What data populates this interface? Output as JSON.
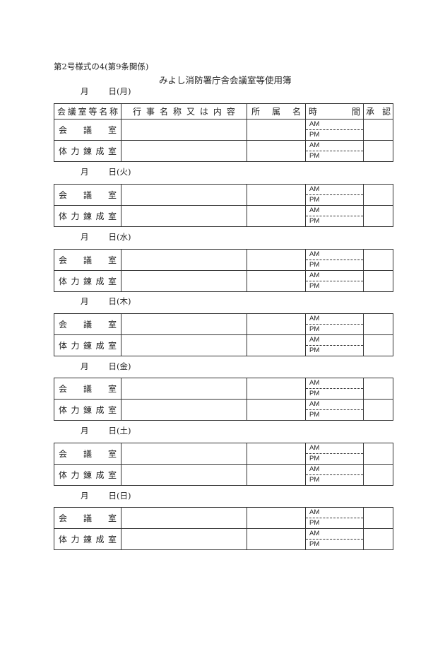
{
  "form_number": "第2号様式の4(第9条関係)",
  "title": "みよし消防署庁舎会議室等使用簿",
  "month_label": "月",
  "day_label": "日",
  "headers": {
    "room": [
      "会",
      "議",
      "室",
      "等",
      "名",
      "称"
    ],
    "event": [
      "行",
      "事",
      "名",
      "称",
      "又",
      "は",
      "内",
      "容"
    ],
    "dept": [
      "所",
      "属",
      "名"
    ],
    "time": [
      "時",
      "間"
    ],
    "approval": [
      "承",
      "認"
    ]
  },
  "rooms": [
    {
      "name": [
        "会",
        "議",
        "室"
      ]
    },
    {
      "name": [
        "体",
        "力",
        "錬",
        "成",
        "室"
      ]
    }
  ],
  "am": "AM",
  "pm": "PM",
  "days": [
    "(月)",
    "(火)",
    "(水)",
    "(木)",
    "(金)",
    "(土)",
    "(日)"
  ]
}
